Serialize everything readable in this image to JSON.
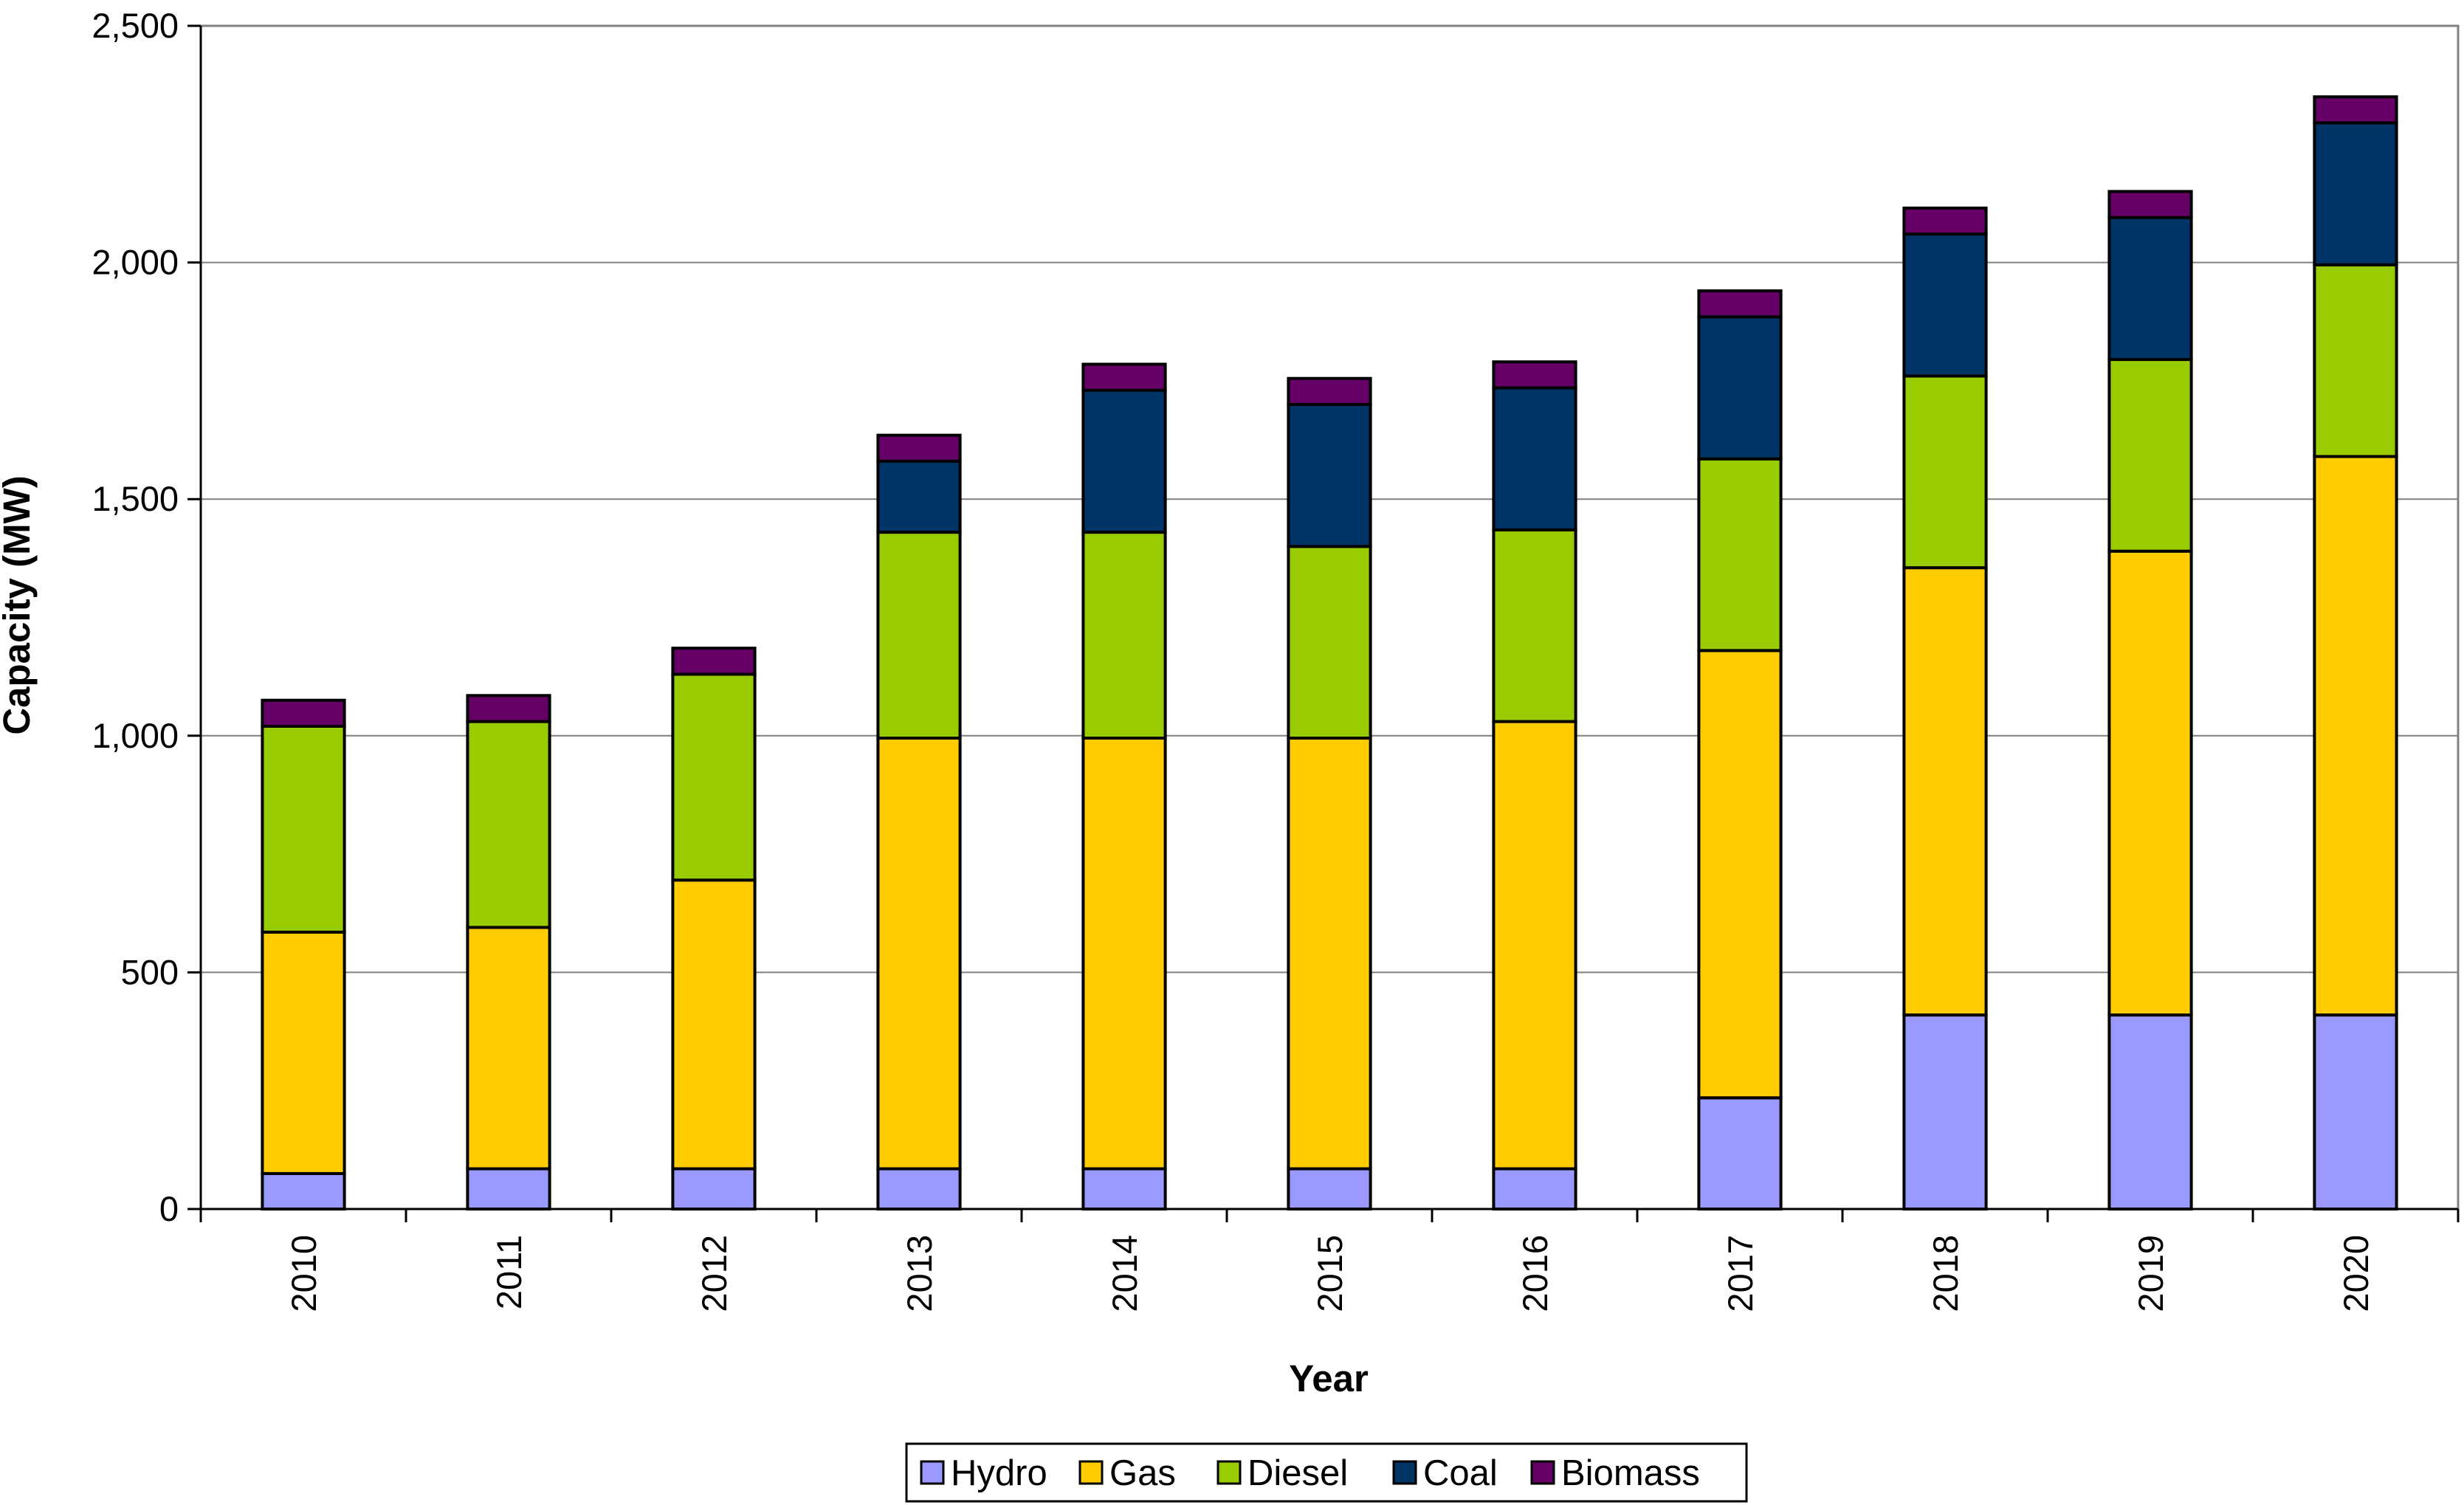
{
  "chart_data": {
    "type": "bar",
    "stacked": true,
    "title": "",
    "xlabel": "Year",
    "ylabel": "Capacity (MW)",
    "ylim": [
      0,
      2500
    ],
    "yticks": [
      0,
      500,
      1000,
      1500,
      2000,
      2500
    ],
    "ytick_labels": [
      "0",
      "500",
      "1,000",
      "1,500",
      "2,000",
      "2,500"
    ],
    "grid": true,
    "legend_position": "bottom",
    "categories": [
      "2010",
      "2011",
      "2012",
      "2013",
      "2014",
      "2015",
      "2016",
      "2017",
      "2018",
      "2019",
      "2020"
    ],
    "series": [
      {
        "name": "Hydro",
        "color": "#9999ff",
        "values": [
          75,
          85,
          85,
          85,
          85,
          85,
          85,
          235,
          410,
          410,
          410
        ]
      },
      {
        "name": "Gas",
        "color": "#ffcc00",
        "values": [
          510,
          510,
          610,
          910,
          910,
          910,
          945,
          945,
          945,
          980,
          1180
        ]
      },
      {
        "name": "Diesel",
        "color": "#99cc00",
        "values": [
          435,
          435,
          435,
          435,
          435,
          405,
          405,
          405,
          405,
          405,
          405
        ]
      },
      {
        "name": "Coal",
        "color": "#003366",
        "values": [
          0,
          0,
          0,
          150,
          300,
          300,
          300,
          300,
          300,
          300,
          300
        ]
      },
      {
        "name": "Biomass",
        "color": "#660066",
        "values": [
          55,
          55,
          55,
          55,
          55,
          55,
          55,
          55,
          55,
          55,
          55
        ]
      }
    ]
  }
}
